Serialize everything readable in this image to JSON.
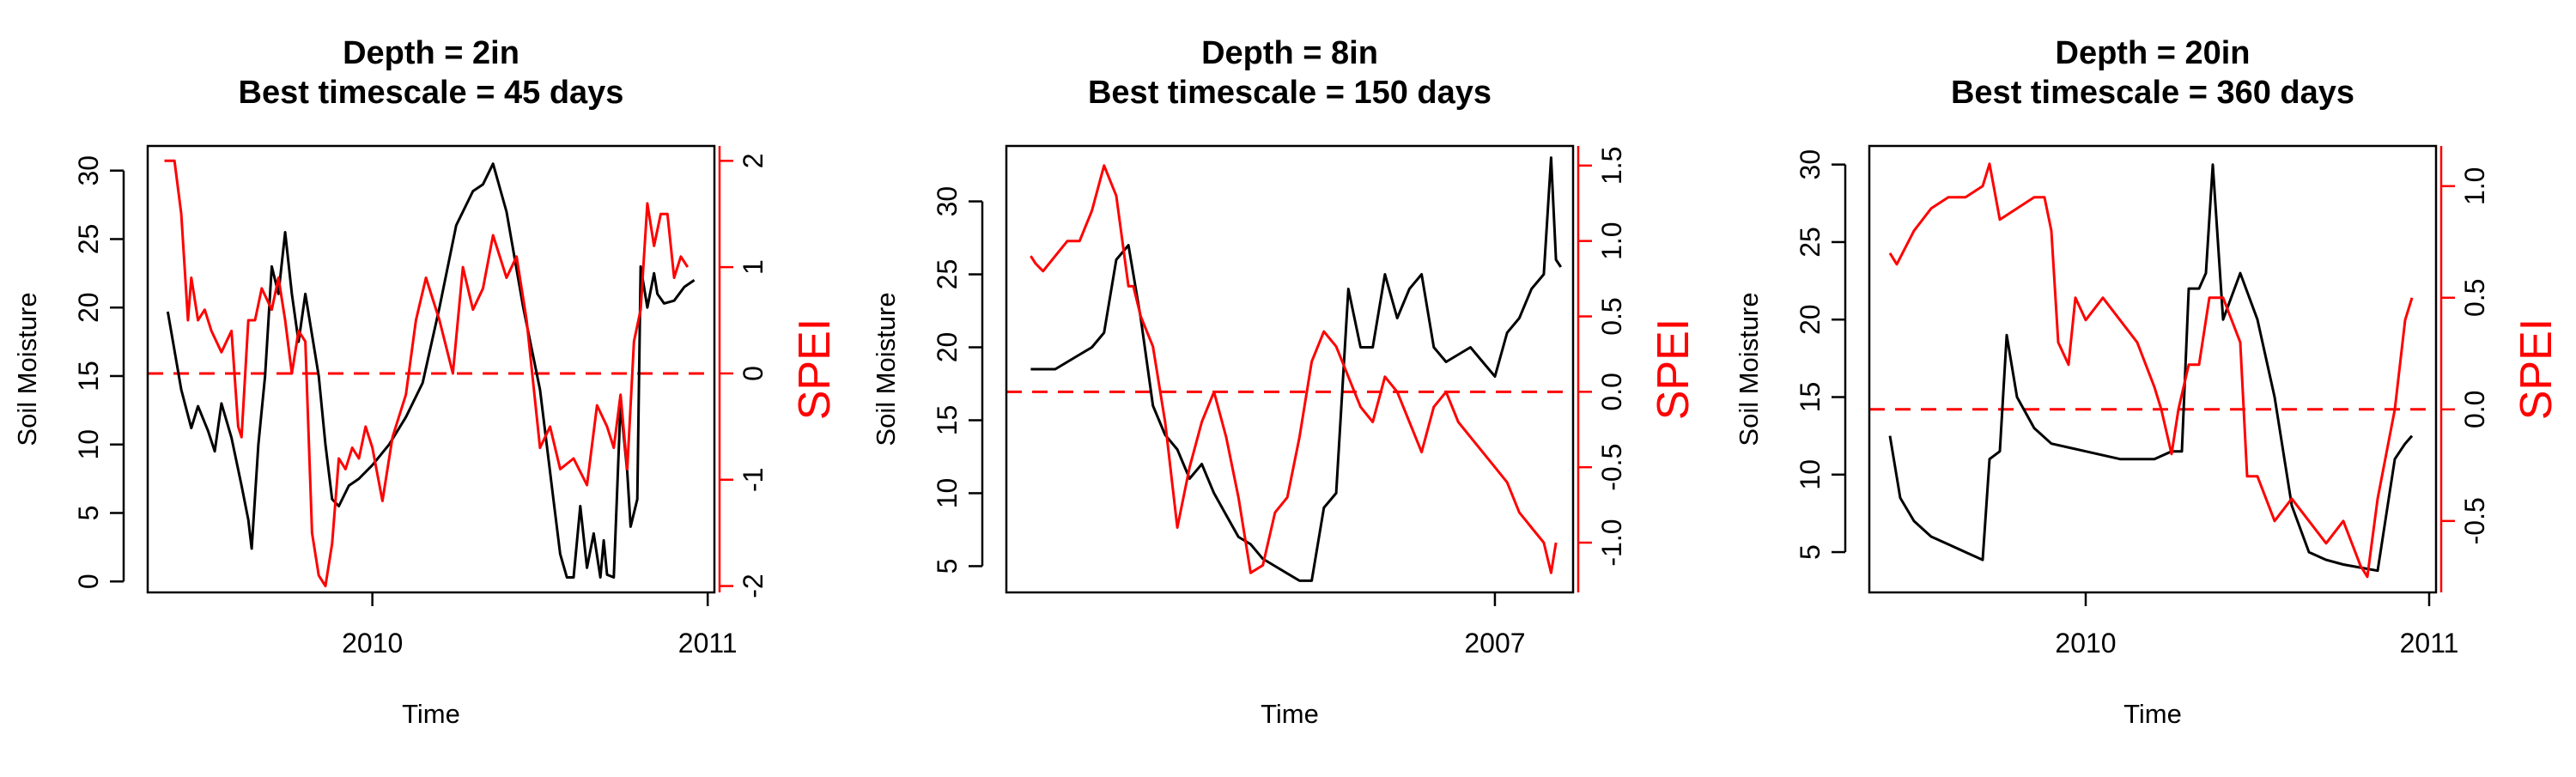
{
  "chart_data": [
    {
      "type": "line",
      "title": [
        "Depth = 2in",
        "Best timescale = 45 days"
      ],
      "xlabel": "Time",
      "ylabel": "Soil Moisture",
      "y2label": "SPEI",
      "xlim": [
        2009.33,
        2011.02
      ],
      "xticks": [
        {
          "v": 2010,
          "label": "2010"
        },
        {
          "v": 2011,
          "label": "2011"
        }
      ],
      "ylim": [
        -0.8,
        31.8
      ],
      "yticks": [
        0,
        5,
        10,
        15,
        20,
        25,
        30
      ],
      "y2lim": [
        -2.06,
        2.14
      ],
      "y2ticks": [
        -2,
        -1,
        0,
        1,
        2
      ],
      "zero_line": 0,
      "colors": {
        "moisture": "#000000",
        "spei": "#ff0000"
      },
      "series": [
        {
          "axis": "left",
          "color": "#000000",
          "x": [
            2009.39,
            2009.43,
            2009.46,
            2009.48,
            2009.51,
            2009.53,
            2009.55,
            2009.58,
            2009.61,
            2009.63,
            2009.64,
            2009.66,
            2009.68,
            2009.7,
            2009.72,
            2009.74,
            2009.76,
            2009.78,
            2009.8,
            2009.82,
            2009.84,
            2009.86,
            2009.88,
            2009.9,
            2009.93,
            2009.96,
            2010.0,
            2010.05,
            2010.1,
            2010.15,
            2010.2,
            2010.25,
            2010.3,
            2010.33,
            2010.36,
            2010.4,
            2010.45,
            2010.5,
            2010.52,
            2010.54,
            2010.56,
            2010.58,
            2010.6,
            2010.62,
            2010.64,
            2010.66,
            2010.68,
            2010.69,
            2010.7,
            2010.72,
            2010.74,
            2010.76,
            2010.77,
            2010.79,
            2010.8,
            2010.82,
            2010.84,
            2010.85,
            2010.87,
            2010.9,
            2010.93,
            2010.96
          ],
          "y": [
            19.7,
            14,
            11.2,
            12.8,
            11,
            9.5,
            13,
            10.5,
            7,
            4.5,
            2.4,
            10,
            15,
            23,
            21,
            25.5,
            21,
            17.5,
            21,
            18,
            15,
            10,
            6,
            5.5,
            7,
            7.5,
            8.5,
            10,
            12,
            14.5,
            20,
            26,
            28.5,
            29,
            30.5,
            27,
            20,
            14,
            10,
            6,
            2,
            0.3,
            0.3,
            5.5,
            1,
            3.5,
            0.3,
            3,
            0.5,
            0.3,
            13,
            8,
            4,
            6,
            23,
            20,
            22.5,
            21,
            20.3,
            20.5,
            21.5,
            22
          ]
        },
        {
          "axis": "right",
          "color": "#ff0000",
          "x": [
            2009.38,
            2009.41,
            2009.43,
            2009.45,
            2009.46,
            2009.48,
            2009.5,
            2009.52,
            2009.55,
            2009.58,
            2009.6,
            2009.61,
            2009.63,
            2009.65,
            2009.67,
            2009.7,
            2009.72,
            2009.74,
            2009.76,
            2009.78,
            2009.8,
            2009.82,
            2009.84,
            2009.86,
            2009.88,
            2009.9,
            2009.92,
            2009.94,
            2009.96,
            2009.98,
            2010.0,
            2010.03,
            2010.06,
            2010.1,
            2010.13,
            2010.16,
            2010.2,
            2010.24,
            2010.27,
            2010.3,
            2010.33,
            2010.36,
            2010.4,
            2010.43,
            2010.46,
            2010.5,
            2010.53,
            2010.56,
            2010.6,
            2010.64,
            2010.67,
            2010.7,
            2010.72,
            2010.74,
            2010.76,
            2010.78,
            2010.8,
            2010.82,
            2010.84,
            2010.86,
            2010.88,
            2010.9,
            2010.92,
            2010.94
          ],
          "y": [
            2,
            2,
            1.5,
            0.5,
            0.9,
            0.5,
            0.6,
            0.4,
            0.2,
            0.4,
            -0.5,
            -0.6,
            0.5,
            0.5,
            0.8,
            0.6,
            0.9,
            0.5,
            0,
            0.4,
            0.3,
            -1.5,
            -1.9,
            -2,
            -1.6,
            -0.8,
            -0.9,
            -0.7,
            -0.8,
            -0.5,
            -0.7,
            -1.2,
            -0.6,
            -0.2,
            0.5,
            0.9,
            0.5,
            0,
            1,
            0.6,
            0.8,
            1.3,
            0.9,
            1.1,
            0.5,
            -0.7,
            -0.5,
            -0.9,
            -0.8,
            -1.05,
            -0.3,
            -0.5,
            -0.7,
            -0.2,
            -0.9,
            0.3,
            0.6,
            1.6,
            1.2,
            1.5,
            1.5,
            0.9,
            1.1,
            1
          ]
        }
      ]
    },
    {
      "type": "line",
      "title": [
        "Depth = 8in",
        "Best timescale = 150 days"
      ],
      "xlabel": "Time",
      "ylabel": "Soil Moisture",
      "y2label": "SPEI",
      "xlim": [
        2005.0,
        2007.32
      ],
      "xticks": [
        {
          "v": 2007,
          "label": "2007"
        }
      ],
      "ylim": [
        3.2,
        33.8
      ],
      "yticks": [
        5,
        10,
        15,
        20,
        25,
        30
      ],
      "y2lim": [
        -1.33,
        1.63
      ],
      "y2ticks": [
        -1.0,
        -0.5,
        0.0,
        0.5,
        1.0,
        1.5
      ],
      "zero_line": 0,
      "colors": {
        "moisture": "#000000",
        "spei": "#ff0000"
      },
      "series": [
        {
          "axis": "left",
          "color": "#000000",
          "x": [
            2005.1,
            2005.2,
            2005.3,
            2005.35,
            2005.4,
            2005.45,
            2005.5,
            2005.55,
            2005.6,
            2005.65,
            2005.7,
            2005.75,
            2005.8,
            2005.85,
            2005.9,
            2005.95,
            2006.0,
            2006.05,
            2006.1,
            2006.15,
            2006.2,
            2006.25,
            2006.3,
            2006.35,
            2006.4,
            2006.45,
            2006.5,
            2006.55,
            2006.6,
            2006.65,
            2006.7,
            2006.75,
            2006.8,
            2006.85,
            2006.9,
            2006.95,
            2007.0,
            2007.05,
            2007.1,
            2007.15,
            2007.2,
            2007.23,
            2007.25,
            2007.27
          ],
          "y": [
            18.5,
            18.5,
            19.5,
            20,
            21,
            26,
            27,
            22,
            16,
            14,
            13,
            11,
            12,
            10,
            8.5,
            7,
            6.5,
            5.5,
            5,
            4.5,
            4,
            4,
            9,
            10,
            24,
            20,
            20,
            25,
            22,
            24,
            25,
            20,
            19,
            19.5,
            20,
            19,
            18,
            21,
            22,
            24,
            25,
            33,
            26,
            25.5
          ]
        },
        {
          "axis": "right",
          "color": "#ff0000",
          "x": [
            2005.1,
            2005.12,
            2005.15,
            2005.2,
            2005.25,
            2005.3,
            2005.35,
            2005.4,
            2005.45,
            2005.5,
            2005.52,
            2005.55,
            2005.6,
            2005.65,
            2005.7,
            2005.75,
            2005.8,
            2005.85,
            2005.9,
            2005.95,
            2006.0,
            2006.05,
            2006.1,
            2006.15,
            2006.2,
            2006.25,
            2006.3,
            2006.35,
            2006.4,
            2006.45,
            2006.5,
            2006.55,
            2006.6,
            2006.65,
            2006.7,
            2006.75,
            2006.8,
            2006.85,
            2006.9,
            2006.95,
            2007.0,
            2007.05,
            2007.1,
            2007.15,
            2007.2,
            2007.23,
            2007.25
          ],
          "y": [
            0.9,
            0.85,
            0.8,
            0.9,
            1,
            1,
            1.2,
            1.5,
            1.3,
            0.7,
            0.7,
            0.5,
            0.3,
            -0.2,
            -0.9,
            -0.5,
            -0.2,
            0,
            -0.3,
            -0.7,
            -1.2,
            -1.15,
            -0.8,
            -0.7,
            -0.3,
            0.2,
            0.4,
            0.3,
            0.1,
            -0.1,
            -0.2,
            0.1,
            0,
            -0.2,
            -0.4,
            -0.1,
            0,
            -0.2,
            -0.3,
            -0.4,
            -0.5,
            -0.6,
            -0.8,
            -0.9,
            -1,
            -1.2,
            -1.0
          ]
        }
      ]
    },
    {
      "type": "line",
      "title": [
        "Depth = 20in",
        "Best timescale = 360 days"
      ],
      "xlabel": "Time",
      "ylabel": "Soil Moisture",
      "y2label": "SPEI",
      "xlim": [
        2009.37,
        2011.02
      ],
      "xticks": [
        {
          "v": 2010,
          "label": "2010"
        },
        {
          "v": 2011,
          "label": "2011"
        }
      ],
      "ylim": [
        2.4,
        31.2
      ],
      "yticks": [
        5,
        10,
        15,
        20,
        25,
        30
      ],
      "y2lim": [
        -0.82,
        1.18
      ],
      "y2ticks": [
        -0.5,
        0.0,
        0.5,
        1.0
      ],
      "zero_line": 0,
      "colors": {
        "moisture": "#000000",
        "spei": "#ff0000"
      },
      "series": [
        {
          "axis": "left",
          "color": "#000000",
          "x": [
            2009.43,
            2009.46,
            2009.5,
            2009.55,
            2009.6,
            2009.65,
            2009.7,
            2009.72,
            2009.75,
            2009.77,
            2009.8,
            2009.85,
            2009.9,
            2010.0,
            2010.1,
            2010.2,
            2010.25,
            2010.28,
            2010.3,
            2010.33,
            2010.35,
            2010.37,
            2010.4,
            2010.45,
            2010.5,
            2010.55,
            2010.6,
            2010.65,
            2010.7,
            2010.75,
            2010.8,
            2010.85,
            2010.9,
            2010.93,
            2010.95
          ],
          "y": [
            12.5,
            8.5,
            7,
            6,
            5.5,
            5,
            4.5,
            11,
            11.5,
            19,
            15,
            13,
            12,
            11.5,
            11,
            11,
            11.5,
            11.5,
            22,
            22,
            23,
            30,
            20,
            23,
            20,
            15,
            8,
            5,
            4.5,
            4.2,
            4,
            3.8,
            11,
            12,
            12.5
          ]
        },
        {
          "axis": "right",
          "color": "#ff0000",
          "x": [
            2009.43,
            2009.45,
            2009.5,
            2009.55,
            2009.6,
            2009.65,
            2009.7,
            2009.72,
            2009.75,
            2009.8,
            2009.85,
            2009.88,
            2009.9,
            2009.92,
            2009.95,
            2009.97,
            2010.0,
            2010.05,
            2010.1,
            2010.15,
            2010.2,
            2010.22,
            2010.25,
            2010.27,
            2010.3,
            2010.33,
            2010.36,
            2010.4,
            2010.45,
            2010.47,
            2010.5,
            2010.55,
            2010.6,
            2010.65,
            2010.7,
            2010.75,
            2010.8,
            2010.82,
            2010.85,
            2010.9,
            2010.93,
            2010.95
          ],
          "y": [
            0.7,
            0.65,
            0.8,
            0.9,
            0.95,
            0.95,
            1,
            1.1,
            0.85,
            0.9,
            0.95,
            0.95,
            0.8,
            0.3,
            0.2,
            0.5,
            0.4,
            0.5,
            0.4,
            0.3,
            0.1,
            0,
            -0.2,
            0,
            0.2,
            0.2,
            0.5,
            0.5,
            0.3,
            -0.3,
            -0.3,
            -0.5,
            -0.4,
            -0.5,
            -0.6,
            -0.5,
            -0.7,
            -0.75,
            -0.4,
            0,
            0.4,
            0.5
          ]
        }
      ]
    }
  ]
}
